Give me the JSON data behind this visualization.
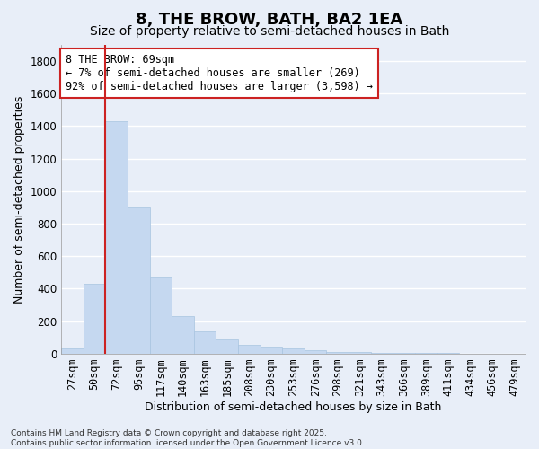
{
  "title": "8, THE BROW, BATH, BA2 1EA",
  "subtitle": "Size of property relative to semi-detached houses in Bath",
  "xlabel": "Distribution of semi-detached houses by size in Bath",
  "ylabel": "Number of semi-detached properties",
  "annotation_title": "8 THE BROW: 69sqm",
  "annotation_line1": "← 7% of semi-detached houses are smaller (269)",
  "annotation_line2": "92% of semi-detached houses are larger (3,598) →",
  "footer_line1": "Contains HM Land Registry data © Crown copyright and database right 2025.",
  "footer_line2": "Contains public sector information licensed under the Open Government Licence v3.0.",
  "categories": [
    "27sqm",
    "50sqm",
    "72sqm",
    "95sqm",
    "117sqm",
    "140sqm",
    "163sqm",
    "185sqm",
    "208sqm",
    "230sqm",
    "253sqm",
    "276sqm",
    "298sqm",
    "321sqm",
    "343sqm",
    "366sqm",
    "389sqm",
    "411sqm",
    "434sqm",
    "456sqm",
    "479sqm"
  ],
  "values": [
    30,
    430,
    1430,
    900,
    470,
    230,
    135,
    90,
    55,
    45,
    30,
    20,
    10,
    8,
    5,
    4,
    3,
    2,
    1,
    0,
    0
  ],
  "bar_color": "#c5d8f0",
  "bar_edge_color": "#a8c4e0",
  "highlight_color": "#cc2222",
  "vline_x_index": 2,
  "ylim": [
    0,
    1900
  ],
  "yticks": [
    0,
    200,
    400,
    600,
    800,
    1000,
    1200,
    1400,
    1600,
    1800
  ],
  "background_color": "#e8eef8",
  "grid_color": "#ffffff",
  "title_fontsize": 13,
  "subtitle_fontsize": 10,
  "axis_label_fontsize": 9,
  "tick_fontsize": 8.5,
  "annotation_fontsize": 8.5
}
